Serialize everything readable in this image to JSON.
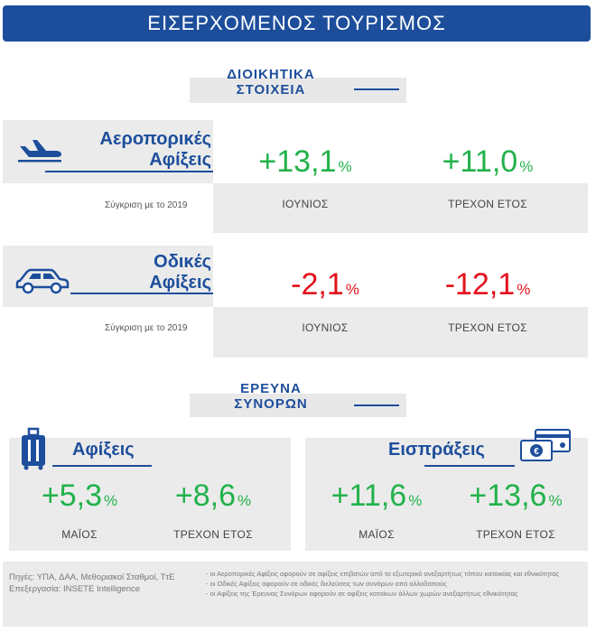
{
  "header": {
    "title": "ΕΙΣΕΡΧΟΜΕΝΟΣ ΤΟΥΡΙΣΜΟΣ"
  },
  "admin": {
    "heading_line1": "ΔΙΟΙΚΗΤΙΚΑ",
    "heading_line2": "ΣΤΟΙΧΕΙΑ",
    "air": {
      "label_line1": "Αεροπορικές",
      "label_line2": "Αφίξεις",
      "comparison": "Σύγκριση με το 2019",
      "june_value": "+13,1",
      "june_label": "ΙΟΥΝΙΟΣ",
      "ytd_value": "+11,0",
      "ytd_label": "ΤΡΕΧΟΝ ΕΤΟΣ",
      "unit": "%"
    },
    "road": {
      "label_line1": "Οδικές",
      "label_line2": "Αφίξεις",
      "comparison": "Σύγκριση με το 2019",
      "june_value": "-2,1",
      "june_label": "ΙΟΥΝΙΟΣ",
      "ytd_value": "-12,1",
      "ytd_label": "ΤΡΕΧΟΝ ΕΤΟΣ",
      "unit": "%"
    }
  },
  "survey": {
    "heading_line1": "ΕΡΕΥΝΑ",
    "heading_line2": "ΣΥΝΟΡΩΝ",
    "arrivals": {
      "label": "Αφίξεις",
      "may_value": "+5,3",
      "may_label": "ΜΑΪΟΣ",
      "ytd_value": "+8,6",
      "ytd_label": "ΤΡΕΧΟΝ ΕΤΟΣ",
      "unit": "%"
    },
    "receipts": {
      "label": "Εισπράξεις",
      "may_value": "+11,6",
      "may_label": "ΜΑΪΟΣ",
      "ytd_value": "+13,6",
      "ytd_label": "ΤΡΕΧΟΝ ΕΤΟΣ",
      "unit": "%"
    }
  },
  "footer": {
    "sources": "Πηγές: ΥΠΑ, ΔΑΑ, Μεθοριακοί Σταθμοί, ΤτΕ",
    "processing": "Επεξεργασία: INSETE Intelligence",
    "note1": "- οι Αεροπορικές Αφίξεις αφορούν σε αφίξεις επιβατών από το εξωτερικό ανεξαρτήτως τόπου κατοικίας και εθνικότητας",
    "note2": "- οι Οδικές Αφίξεις αφορούν σε οδικές διελεύσεις των συνόρων από αλλοδαπούς",
    "note3": "- οι Αφίξεις της Έρευνας Συνόρων αφορούν σε αφίξεις κατοίκων άλλων χωρών ανεξαρτήτως εθνικότητας"
  },
  "colors": {
    "brand": "#1d4e9c",
    "positive": "#21b24b",
    "negative": "#e3111b"
  }
}
